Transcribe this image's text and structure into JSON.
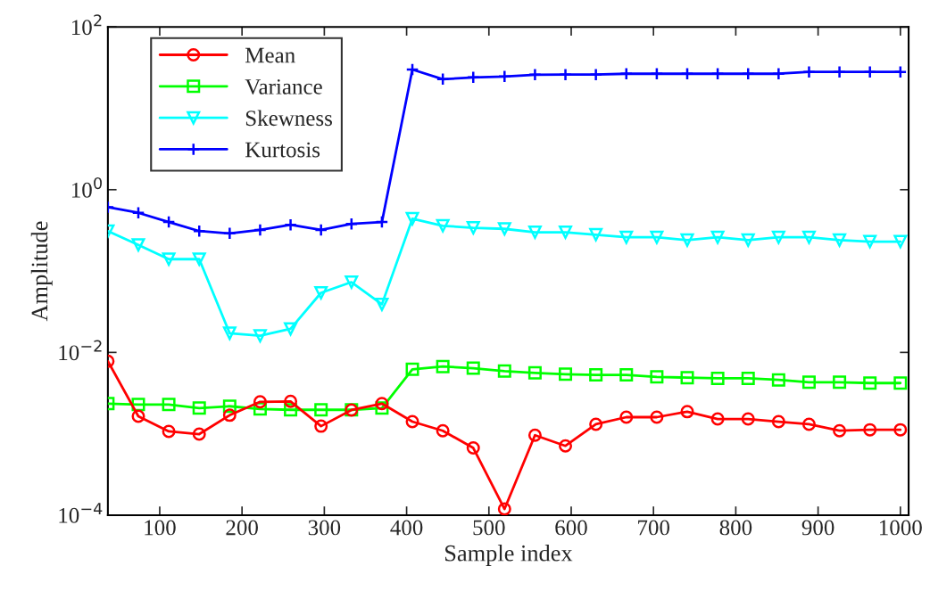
{
  "chart_data": {
    "type": "line",
    "xlabel": "Sample index",
    "ylabel": "Amplitude",
    "x": [
      37,
      74,
      111,
      148,
      185,
      222,
      259,
      296,
      333,
      370,
      407,
      444,
      481,
      519,
      556,
      593,
      630,
      667,
      704,
      741,
      778,
      815,
      852,
      889,
      926,
      963,
      1000
    ],
    "series": [
      {
        "name": "Mean",
        "color": "#ff0000",
        "marker": "circle",
        "values": [
          0.0078,
          0.00164,
          0.00107,
          0.00099,
          0.00169,
          0.00247,
          0.0025,
          0.00124,
          0.00196,
          0.00235,
          0.00141,
          0.00109,
          0.00067,
          0.000119,
          0.00096,
          0.00071,
          0.00131,
          0.0016,
          0.0016,
          0.00187,
          0.00152,
          0.00152,
          0.00141,
          0.00131,
          0.00109,
          0.00112,
          0.00112
        ]
      },
      {
        "name": "Variance",
        "color": "#00ff00",
        "marker": "square",
        "values": [
          0.00235,
          0.00229,
          0.00229,
          0.00207,
          0.00218,
          0.00202,
          0.00197,
          0.00197,
          0.00197,
          0.00207,
          0.0062,
          0.0067,
          0.0064,
          0.0059,
          0.0056,
          0.0054,
          0.0053,
          0.0053,
          0.005,
          0.0049,
          0.0048,
          0.0048,
          0.0046,
          0.0043,
          0.0043,
          0.0042,
          0.0042
        ]
      },
      {
        "name": "Skewness",
        "color": "#00ffff",
        "marker": "triangle",
        "values": [
          0.31,
          0.21,
          0.14,
          0.14,
          0.0172,
          0.016,
          0.0195,
          0.054,
          0.073,
          0.039,
          0.44,
          0.36,
          0.34,
          0.33,
          0.3,
          0.3,
          0.28,
          0.26,
          0.26,
          0.24,
          0.26,
          0.24,
          0.26,
          0.26,
          0.24,
          0.23,
          0.23
        ]
      },
      {
        "name": "Kurtosis",
        "color": "#0000ff",
        "marker": "cross",
        "values": [
          0.61,
          0.52,
          0.4,
          0.31,
          0.29,
          0.32,
          0.37,
          0.32,
          0.38,
          0.4,
          30,
          22.8,
          24,
          24.6,
          25.9,
          26,
          26,
          26.6,
          26.6,
          26.6,
          26.6,
          26.6,
          26.6,
          28,
          28,
          28,
          28
        ]
      }
    ],
    "log": "y",
    "xlim": [
      37,
      1010
    ],
    "xticks": [
      100,
      200,
      300,
      400,
      500,
      600,
      700,
      800,
      900,
      1000
    ],
    "ylim": [
      0.0001,
      100
    ],
    "yticks": [
      {
        "value": 0.0001,
        "label": "10$^{−4}$"
      },
      {
        "value": 0.01,
        "label": "10$^{−2}$"
      },
      {
        "value": 1,
        "label": "10$^{0}$"
      },
      {
        "value": 100,
        "label": "10$^{2}$"
      }
    ],
    "legend": "top left",
    "grid": false,
    "line_style": "solid"
  }
}
